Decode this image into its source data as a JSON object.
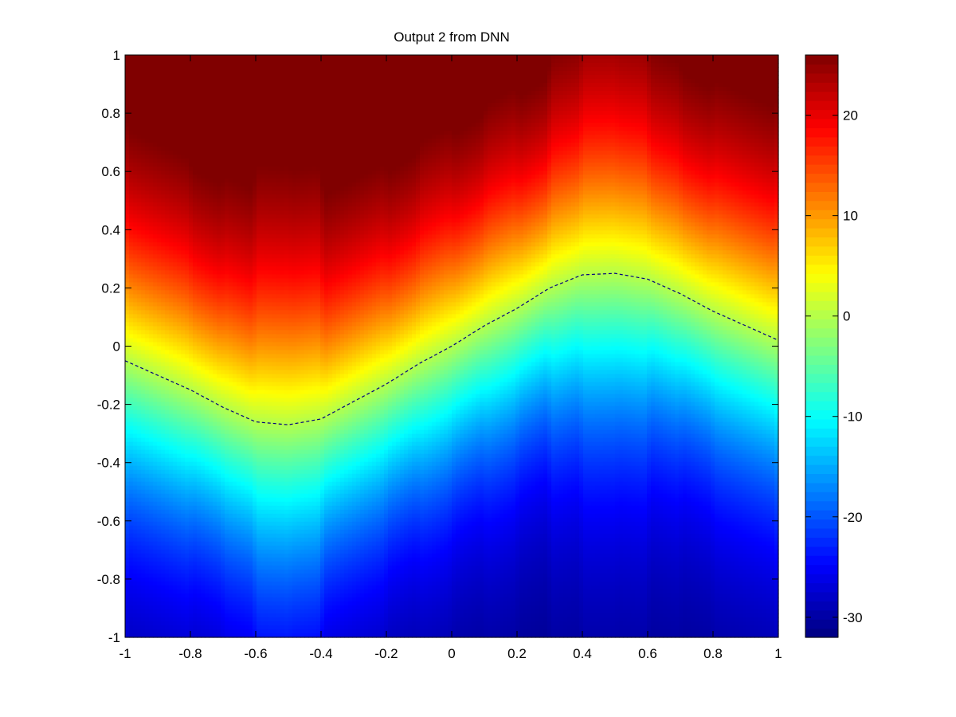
{
  "chart_data": {
    "type": "heatmap",
    "title": "Output 2 from DNN",
    "xlabel": "",
    "ylabel": "",
    "xlim": [
      -1,
      1
    ],
    "ylim": [
      -1,
      1
    ],
    "x_ticks": [
      -1,
      -0.8,
      -0.6,
      -0.4,
      -0.2,
      0,
      0.2,
      0.4,
      0.6,
      0.8,
      1
    ],
    "x_tick_labels": [
      "-1",
      "-0.8",
      "-0.6",
      "-0.4",
      "-0.2",
      "0",
      "0.2",
      "0.4",
      "0.6",
      "0.8",
      "1"
    ],
    "y_ticks": [
      -1,
      -0.8,
      -0.6,
      -0.4,
      -0.2,
      0,
      0.2,
      0.4,
      0.6,
      0.8,
      1
    ],
    "y_tick_labels": [
      "-1",
      "-0.8",
      "-0.6",
      "-0.4",
      "-0.2",
      "0",
      "0.2",
      "0.4",
      "0.6",
      "0.8",
      "1"
    ],
    "colormap": "jet",
    "clim": [
      -32,
      26
    ],
    "colorbar": {
      "ticks": [
        -30,
        -20,
        -10,
        0,
        10,
        20
      ],
      "tick_labels": [
        "-30",
        "-20",
        "-10",
        "0",
        "10",
        "20"
      ],
      "placement": "right"
    },
    "grid": false,
    "surface": {
      "description_of_levels": "value increases with y; boundary follows zero contour",
      "zero_contour_x": [
        -1.0,
        -0.9,
        -0.8,
        -0.7,
        -0.6,
        -0.5,
        -0.4,
        -0.3,
        -0.2,
        -0.1,
        0.0,
        0.1,
        0.2,
        0.3,
        0.4,
        0.5,
        0.6,
        0.7,
        0.8,
        0.9,
        1.0
      ],
      "zero_contour_y": [
        -0.05,
        -0.1,
        -0.15,
        -0.21,
        -0.26,
        -0.27,
        -0.25,
        -0.19,
        -0.13,
        -0.06,
        0.0,
        0.07,
        0.13,
        0.2,
        0.245,
        0.25,
        0.23,
        0.18,
        0.12,
        0.07,
        0.02
      ],
      "max_value": 26,
      "min_value": -32
    },
    "contour_style": "dashed",
    "contour_color": "#000080"
  }
}
